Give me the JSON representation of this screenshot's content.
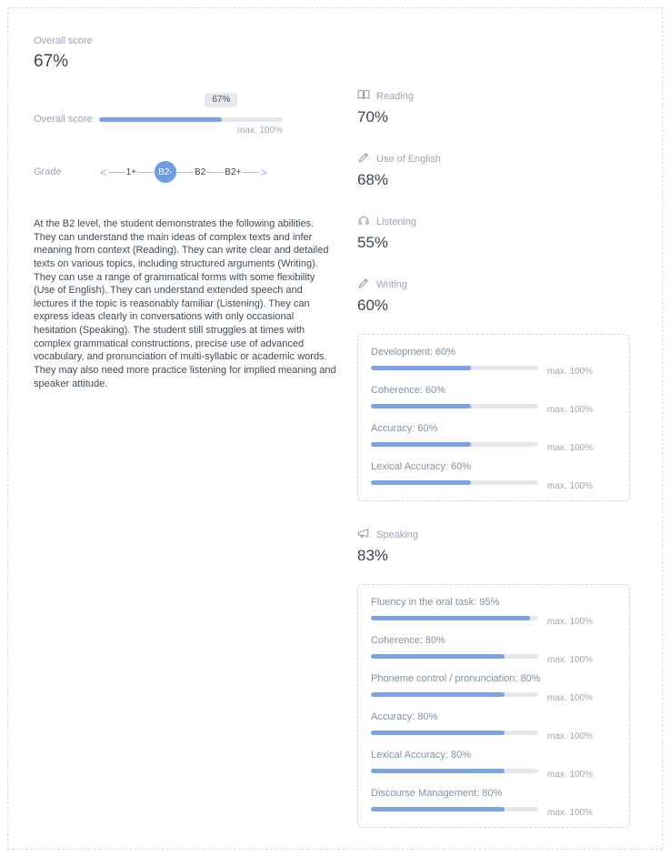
{
  "accent": "#7aa3e3",
  "overall": {
    "label": "Overall score",
    "value": "67%",
    "percent": 67,
    "bar_label": "Overall score",
    "tooltip": "67%",
    "max_label": "max. 100%"
  },
  "grade": {
    "label": "Grade",
    "prev": "<",
    "next": ">",
    "steps": [
      {
        "label": "1+",
        "selected": false
      },
      {
        "label": "B2-",
        "selected": true
      },
      {
        "label": "B2",
        "selected": false
      },
      {
        "label": "B2+",
        "selected": false
      }
    ]
  },
  "description": "At the B2 level, the student demonstrates the following abilities. They can understand the main ideas of complex texts and infer meaning from context (Reading). They can write clear and detailed texts on various topics, including structured arguments (Writing). They can use a range of grammatical forms with some flexibility (Use of English). They can understand extended speech and lectures if the topic is reasonably familiar (Listening). They can express ideas clearly in conversations with only occasional hesitation (Speaking). The student still struggles at times with complex grammatical constructions, precise use of advanced vocabulary, and pronunciation of multi-syllabic or academic words. They may also need more practice listening for implied meaning and speaker attitude.",
  "skills": {
    "reading": {
      "label": "Reading",
      "value": "70%"
    },
    "use_of_english": {
      "label": "Use of English",
      "value": "68%"
    },
    "listening": {
      "label": "Listening",
      "value": "55%"
    },
    "writing": {
      "label": "Writing",
      "value": "60%"
    },
    "speaking": {
      "label": "Speaking",
      "value": "83%"
    }
  },
  "writing_breakdown": [
    {
      "label": "Development: 60%",
      "percent": 60,
      "max": "max. 100%"
    },
    {
      "label": "Coherence: 60%",
      "percent": 60,
      "max": "max. 100%"
    },
    {
      "label": "Accuracy: 60%",
      "percent": 60,
      "max": "max. 100%"
    },
    {
      "label": "Lexical Accuracy: 60%",
      "percent": 60,
      "max": "max. 100%"
    }
  ],
  "speaking_breakdown": [
    {
      "label": "Fluency in the oral task: 95%",
      "percent": 95,
      "max": "max. 100%"
    },
    {
      "label": "Coherence: 80%",
      "percent": 80,
      "max": "max. 100%"
    },
    {
      "label": "Phoneme control / pronunciation: 80%",
      "percent": 80,
      "max": "max. 100%"
    },
    {
      "label": "Accuracy: 80%",
      "percent": 80,
      "max": "max. 100%"
    },
    {
      "label": "Lexical Accuracy: 80%",
      "percent": 80,
      "max": "max. 100%"
    },
    {
      "label": "Discourse Management: 80%",
      "percent": 80,
      "max": "max. 100%"
    }
  ]
}
